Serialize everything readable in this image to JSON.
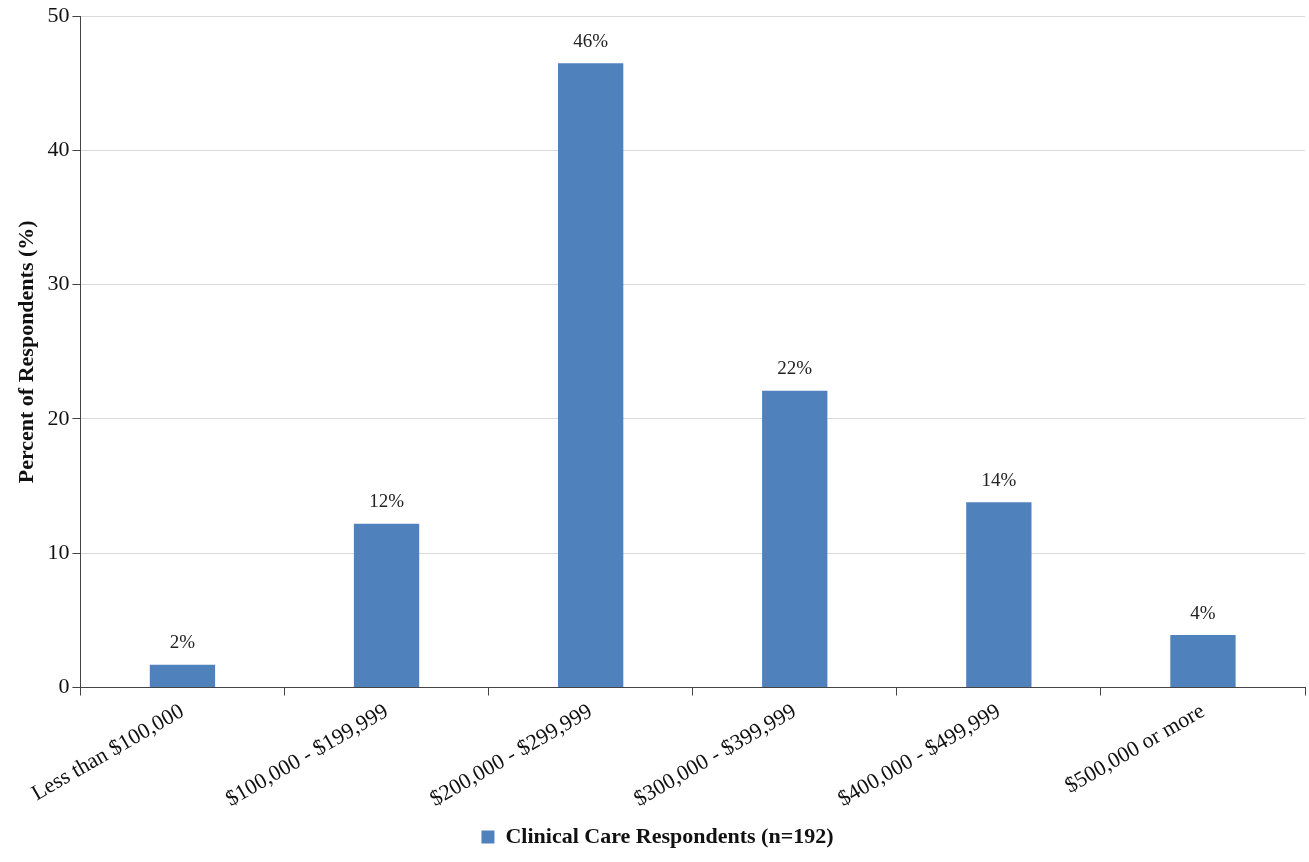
{
  "chart_data": {
    "type": "bar",
    "ylabel": "Percent of Respondents (%)",
    "categories": [
      "Less than $100,000",
      "$100,000 - $199,999",
      "$200,000 - $299,999",
      "$300,000 - $399,999",
      "$400,000 - $499,999",
      "$500,000 or more"
    ],
    "series": [
      {
        "name": "Clinical Care Respondents (n=192)",
        "color": "#4f81bd",
        "values": [
          1.7,
          12.2,
          46.5,
          22.1,
          13.8,
          3.9
        ],
        "value_labels": [
          "2%",
          "12%",
          "46%",
          "22%",
          "14%",
          "4%"
        ]
      }
    ],
    "ylim": [
      0,
      50
    ],
    "yticks": [
      0,
      10,
      20,
      30,
      40,
      50
    ],
    "grid": "y",
    "legend": "bottom"
  }
}
